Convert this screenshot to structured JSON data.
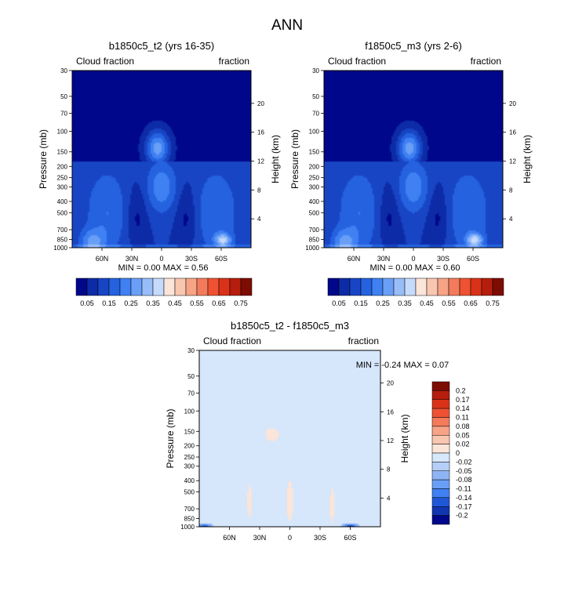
{
  "figure_title": "ANN",
  "chart_data": [
    {
      "type": "heatmap",
      "title": "b1850c5_t2 (yrs 16-35)",
      "left_label": "Cloud fraction",
      "right_label": "fraction",
      "ylabel": "Pressure (mb)",
      "ylabel_right": "Height (km)",
      "x_ticks": [
        "60N",
        "30N",
        "0",
        "30S",
        "60S"
      ],
      "x_tick_lat": [
        60,
        30,
        0,
        -30,
        -60
      ],
      "x_range_lat": [
        90,
        -90
      ],
      "y_ticks": [
        "30",
        "50",
        "70",
        "100",
        "150",
        "200",
        "250",
        "300",
        "400",
        "500",
        "700",
        "850",
        "1000"
      ],
      "y_range_mb": [
        30,
        1000
      ],
      "y_scale": "log",
      "height_ticks": [
        "20",
        "16",
        "12",
        "8",
        "4"
      ],
      "minmax": "MIN =    0.00  MAX =   0.56",
      "min": 0.0,
      "max": 0.56,
      "colorbar_labels": [
        "0.05",
        "0.15",
        "0.25",
        "0.35",
        "0.45",
        "0.55",
        "0.65",
        "0.75"
      ],
      "colorbar_levels": [
        0,
        0.05,
        0.1,
        0.15,
        0.2,
        0.25,
        0.3,
        0.35,
        0.4,
        0.45,
        0.5,
        0.55,
        0.6,
        0.65,
        0.7,
        0.75
      ],
      "colorbar_colors": [
        "#00078a",
        "#0d2ba6",
        "#1845c4",
        "#2462e0",
        "#3f80f2",
        "#6a9ff7",
        "#98bdf9",
        "#c6dafb",
        "#fbe5d9",
        "#f9c6b0",
        "#f6a386",
        "#f37b5b",
        "#ee5232",
        "#d93218",
        "#b51e0c",
        "#7d0c03"
      ]
    },
    {
      "type": "heatmap",
      "title": "f1850c5_m3 (yrs 2-6)",
      "left_label": "Cloud fraction",
      "right_label": "fraction",
      "ylabel": "Pressure (mb)",
      "ylabel_right": "Height (km)",
      "x_ticks": [
        "60N",
        "30N",
        "0",
        "30S",
        "60S"
      ],
      "x_tick_lat": [
        60,
        30,
        0,
        -30,
        -60
      ],
      "x_range_lat": [
        90,
        -90
      ],
      "y_ticks": [
        "30",
        "50",
        "70",
        "100",
        "150",
        "200",
        "250",
        "300",
        "400",
        "500",
        "700",
        "850",
        "1000"
      ],
      "y_range_mb": [
        30,
        1000
      ],
      "y_scale": "log",
      "height_ticks": [
        "20",
        "16",
        "12",
        "8",
        "4"
      ],
      "minmax": "MIN =    0.00  MAX =   0.60",
      "min": 0.0,
      "max": 0.6,
      "colorbar_labels": [
        "0.05",
        "0.15",
        "0.25",
        "0.35",
        "0.45",
        "0.55",
        "0.65",
        "0.75"
      ],
      "colorbar_levels": [
        0,
        0.05,
        0.1,
        0.15,
        0.2,
        0.25,
        0.3,
        0.35,
        0.4,
        0.45,
        0.5,
        0.55,
        0.6,
        0.65,
        0.7,
        0.75
      ],
      "colorbar_colors": [
        "#00078a",
        "#0d2ba6",
        "#1845c4",
        "#2462e0",
        "#3f80f2",
        "#6a9ff7",
        "#98bdf9",
        "#c6dafb",
        "#fbe5d9",
        "#f9c6b0",
        "#f6a386",
        "#f37b5b",
        "#ee5232",
        "#d93218",
        "#b51e0c",
        "#7d0c03"
      ]
    },
    {
      "type": "heatmap",
      "title": "b1850c5_t2 - f1850c5_m3",
      "left_label": "Cloud fraction",
      "right_label": "fraction",
      "ylabel": "Pressure (mb)",
      "ylabel_right": "Height (km)",
      "x_ticks": [
        "60N",
        "30N",
        "0",
        "30S",
        "60S"
      ],
      "x_tick_lat": [
        60,
        30,
        0,
        -30,
        -60
      ],
      "x_range_lat": [
        90,
        -90
      ],
      "y_ticks": [
        "30",
        "50",
        "70",
        "100",
        "150",
        "200",
        "250",
        "300",
        "400",
        "500",
        "700",
        "850",
        "1000"
      ],
      "y_range_mb": [
        30,
        1000
      ],
      "y_scale": "log",
      "height_ticks": [
        "20",
        "16",
        "12",
        "8",
        "4"
      ],
      "minmax": "MIN =  -0.24  MAX =   0.07",
      "min": -0.24,
      "max": 0.07,
      "colorbar_labels": [
        "0.2",
        "0.17",
        "0.14",
        "0.11",
        "0.08",
        "0.05",
        "0.02",
        "0",
        "-0.02",
        "-0.05",
        "-0.08",
        "-0.11",
        "-0.14",
        "-0.17",
        "-0.2"
      ],
      "colorbar_colors": [
        "#7d0c03",
        "#b51e0c",
        "#d93218",
        "#ee5232",
        "#f37b5b",
        "#f6a386",
        "#f9c6b0",
        "#fbe5d9",
        "#d8e8fb",
        "#b5cff8",
        "#8fb4f5",
        "#6a9ff7",
        "#3f80f2",
        "#1f58d6",
        "#1136b0",
        "#00078a"
      ]
    }
  ]
}
